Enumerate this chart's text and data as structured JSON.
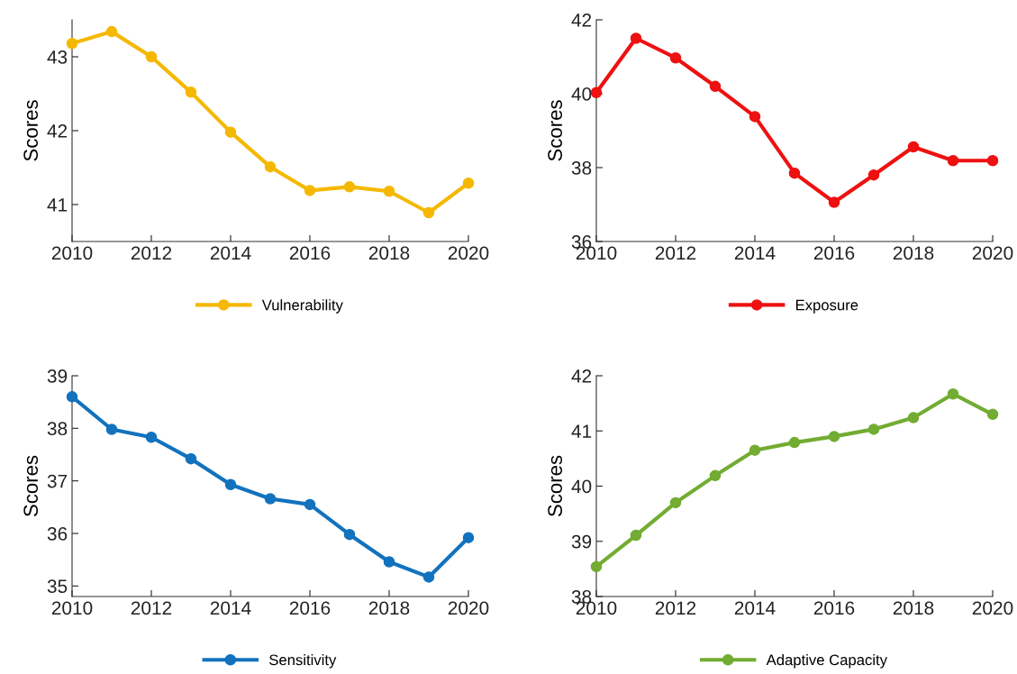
{
  "chart_data": [
    {
      "type": "line",
      "ylabel": "Scores",
      "x": [
        2010,
        2011,
        2012,
        2013,
        2014,
        2015,
        2016,
        2017,
        2018,
        2019,
        2020
      ],
      "xlim": [
        2010,
        2020
      ],
      "xticks": [
        2010,
        2012,
        2014,
        2016,
        2018,
        2020
      ],
      "ylim": [
        40.5,
        43.5
      ],
      "yticks": [
        41,
        42,
        43
      ],
      "legend": "bottom",
      "marker": "circle",
      "grid": false,
      "series": [
        {
          "name": "Vulnerability",
          "color": "#f5b800",
          "values": [
            43.18,
            43.34,
            43.0,
            42.52,
            41.98,
            41.51,
            41.19,
            41.24,
            41.18,
            40.89,
            41.29
          ]
        }
      ]
    },
    {
      "type": "line",
      "ylabel": "Scores",
      "x": [
        2010,
        2011,
        2012,
        2013,
        2014,
        2015,
        2016,
        2017,
        2018,
        2019,
        2020
      ],
      "xlim": [
        2010,
        2020
      ],
      "xticks": [
        2010,
        2012,
        2014,
        2016,
        2018,
        2020
      ],
      "ylim": [
        36,
        42
      ],
      "yticks": [
        36,
        38,
        40,
        42
      ],
      "legend": "bottom",
      "marker": "circle",
      "grid": false,
      "series": [
        {
          "name": "Exposure",
          "color": "#ee1111",
          "values": [
            40.03,
            41.5,
            40.97,
            40.2,
            39.38,
            37.85,
            37.06,
            37.8,
            38.56,
            38.19,
            38.19
          ]
        }
      ]
    },
    {
      "type": "line",
      "ylabel": "Scores",
      "x": [
        2010,
        2011,
        2012,
        2013,
        2014,
        2015,
        2016,
        2017,
        2018,
        2019,
        2020
      ],
      "xlim": [
        2010,
        2020
      ],
      "xticks": [
        2010,
        2012,
        2014,
        2016,
        2018,
        2020
      ],
      "ylim": [
        34.8,
        39
      ],
      "yticks": [
        35,
        36,
        37,
        38,
        39
      ],
      "legend": "bottom",
      "marker": "circle",
      "grid": false,
      "series": [
        {
          "name": "Sensitivity",
          "color": "#1272bd",
          "values": [
            38.6,
            37.98,
            37.83,
            37.42,
            36.93,
            36.66,
            36.55,
            35.98,
            35.46,
            35.17,
            35.92
          ]
        }
      ]
    },
    {
      "type": "line",
      "ylabel": "Scores",
      "x": [
        2010,
        2011,
        2012,
        2013,
        2014,
        2015,
        2016,
        2017,
        2018,
        2019,
        2020
      ],
      "xlim": [
        2010,
        2020
      ],
      "xticks": [
        2010,
        2012,
        2014,
        2016,
        2018,
        2020
      ],
      "ylim": [
        38,
        42
      ],
      "yticks": [
        38,
        39,
        40,
        41,
        42
      ],
      "legend": "bottom",
      "marker": "circle",
      "grid": false,
      "series": [
        {
          "name": "Adaptive Capacity",
          "color": "#72ac32",
          "values": [
            38.54,
            39.11,
            39.7,
            40.19,
            40.65,
            40.79,
            40.9,
            41.03,
            41.24,
            41.67,
            41.3
          ]
        }
      ]
    }
  ]
}
